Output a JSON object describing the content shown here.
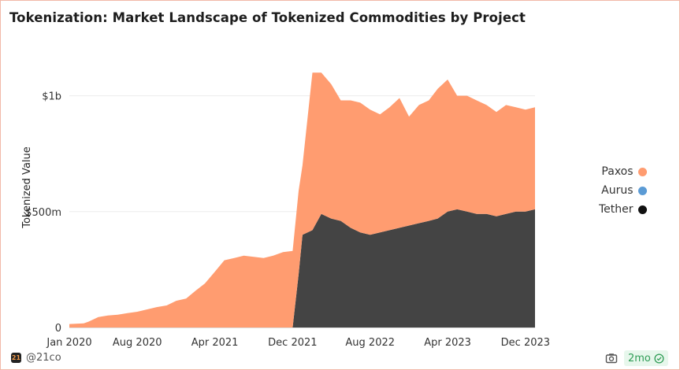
{
  "title": "Tokenization: Market Landscape of Tokenized Commodities by Project",
  "footer": {
    "handle": "@21co",
    "logo_text": "21",
    "age_badge": "2mo"
  },
  "icons": {
    "camera": "camera-icon",
    "check": "check-circle-icon",
    "logo": "21co-logo-icon"
  },
  "colors": {
    "paxos": "#ff9c70",
    "aurus": "#5b9bd5",
    "tether": "#444444",
    "grid": "#ececec"
  },
  "chart_data": {
    "type": "area",
    "stacked": true,
    "title": "Tokenization: Market Landscape of Tokenized Commodities by Project",
    "xlabel": "",
    "ylabel": "Tokenized Value",
    "ylim": [
      0,
      1250000000
    ],
    "yticks": [
      {
        "value": 0,
        "label": "0"
      },
      {
        "value": 500000000,
        "label": "$500m"
      },
      {
        "value": 1000000000,
        "label": "$1b"
      }
    ],
    "xlim": [
      "2020-01-01",
      "2023-12-31"
    ],
    "xticks": [
      {
        "value": "2020-01-01",
        "label": "Jan 2020"
      },
      {
        "value": "2020-08-01",
        "label": "Aug 2020"
      },
      {
        "value": "2021-04-01",
        "label": "Apr 2021"
      },
      {
        "value": "2021-12-01",
        "label": "Dec 2021"
      },
      {
        "value": "2022-08-01",
        "label": "Aug 2022"
      },
      {
        "value": "2023-04-01",
        "label": "Apr 2023"
      },
      {
        "value": "2023-12-01",
        "label": "Dec 2023"
      }
    ],
    "grid": true,
    "legend_position": "right",
    "x": [
      "2020-01-01",
      "2020-02-15",
      "2020-03-01",
      "2020-04-01",
      "2020-05-01",
      "2020-06-01",
      "2020-07-01",
      "2020-08-01",
      "2020-09-01",
      "2020-10-01",
      "2020-11-01",
      "2020-12-01",
      "2021-01-01",
      "2021-02-01",
      "2021-03-01",
      "2021-04-01",
      "2021-05-01",
      "2021-06-01",
      "2021-07-01",
      "2021-08-01",
      "2021-09-01",
      "2021-10-01",
      "2021-11-01",
      "2021-12-01",
      "2021-12-20",
      "2022-01-01",
      "2022-02-01",
      "2022-03-01",
      "2022-04-01",
      "2022-05-01",
      "2022-06-01",
      "2022-07-01",
      "2022-08-01",
      "2022-09-01",
      "2022-10-01",
      "2022-11-01",
      "2022-12-01",
      "2023-01-01",
      "2023-02-01",
      "2023-03-01",
      "2023-04-01",
      "2023-05-01",
      "2023-06-01",
      "2023-07-01",
      "2023-08-01",
      "2023-09-01",
      "2023-10-01",
      "2023-11-01",
      "2023-12-01",
      "2023-12-31"
    ],
    "series": [
      {
        "name": "Tether",
        "values": [
          0,
          0,
          0,
          0,
          0,
          0,
          0,
          0,
          0,
          0,
          0,
          0,
          0,
          0,
          0,
          0,
          0,
          0,
          0,
          0,
          0,
          0,
          0,
          0,
          230000000,
          400000000,
          420000000,
          490000000,
          470000000,
          460000000,
          430000000,
          410000000,
          400000000,
          410000000,
          420000000,
          430000000,
          440000000,
          450000000,
          460000000,
          470000000,
          500000000,
          510000000,
          500000000,
          490000000,
          490000000,
          480000000,
          490000000,
          500000000,
          500000000,
          510000000
        ]
      },
      {
        "name": "Aurus",
        "values": [
          0,
          0,
          0,
          0,
          0,
          0,
          0,
          0,
          0,
          0,
          0,
          0,
          0,
          0,
          0,
          0,
          0,
          0,
          0,
          0,
          0,
          0,
          0,
          0,
          0,
          0,
          0,
          0,
          0,
          0,
          0,
          0,
          0,
          0,
          0,
          0,
          0,
          0,
          0,
          0,
          0,
          0,
          0,
          0,
          0,
          0,
          0,
          0,
          0,
          0
        ]
      },
      {
        "name": "Paxos",
        "values": [
          15000000,
          18000000,
          25000000,
          45000000,
          52000000,
          55000000,
          62000000,
          68000000,
          78000000,
          88000000,
          95000000,
          115000000,
          125000000,
          160000000,
          190000000,
          240000000,
          290000000,
          300000000,
          310000000,
          305000000,
          300000000,
          310000000,
          325000000,
          330000000,
          360000000,
          300000000,
          680000000,
          610000000,
          580000000,
          520000000,
          550000000,
          560000000,
          540000000,
          510000000,
          530000000,
          560000000,
          470000000,
          510000000,
          520000000,
          560000000,
          570000000,
          490000000,
          500000000,
          490000000,
          470000000,
          450000000,
          470000000,
          450000000,
          440000000,
          440000000
        ]
      }
    ]
  }
}
